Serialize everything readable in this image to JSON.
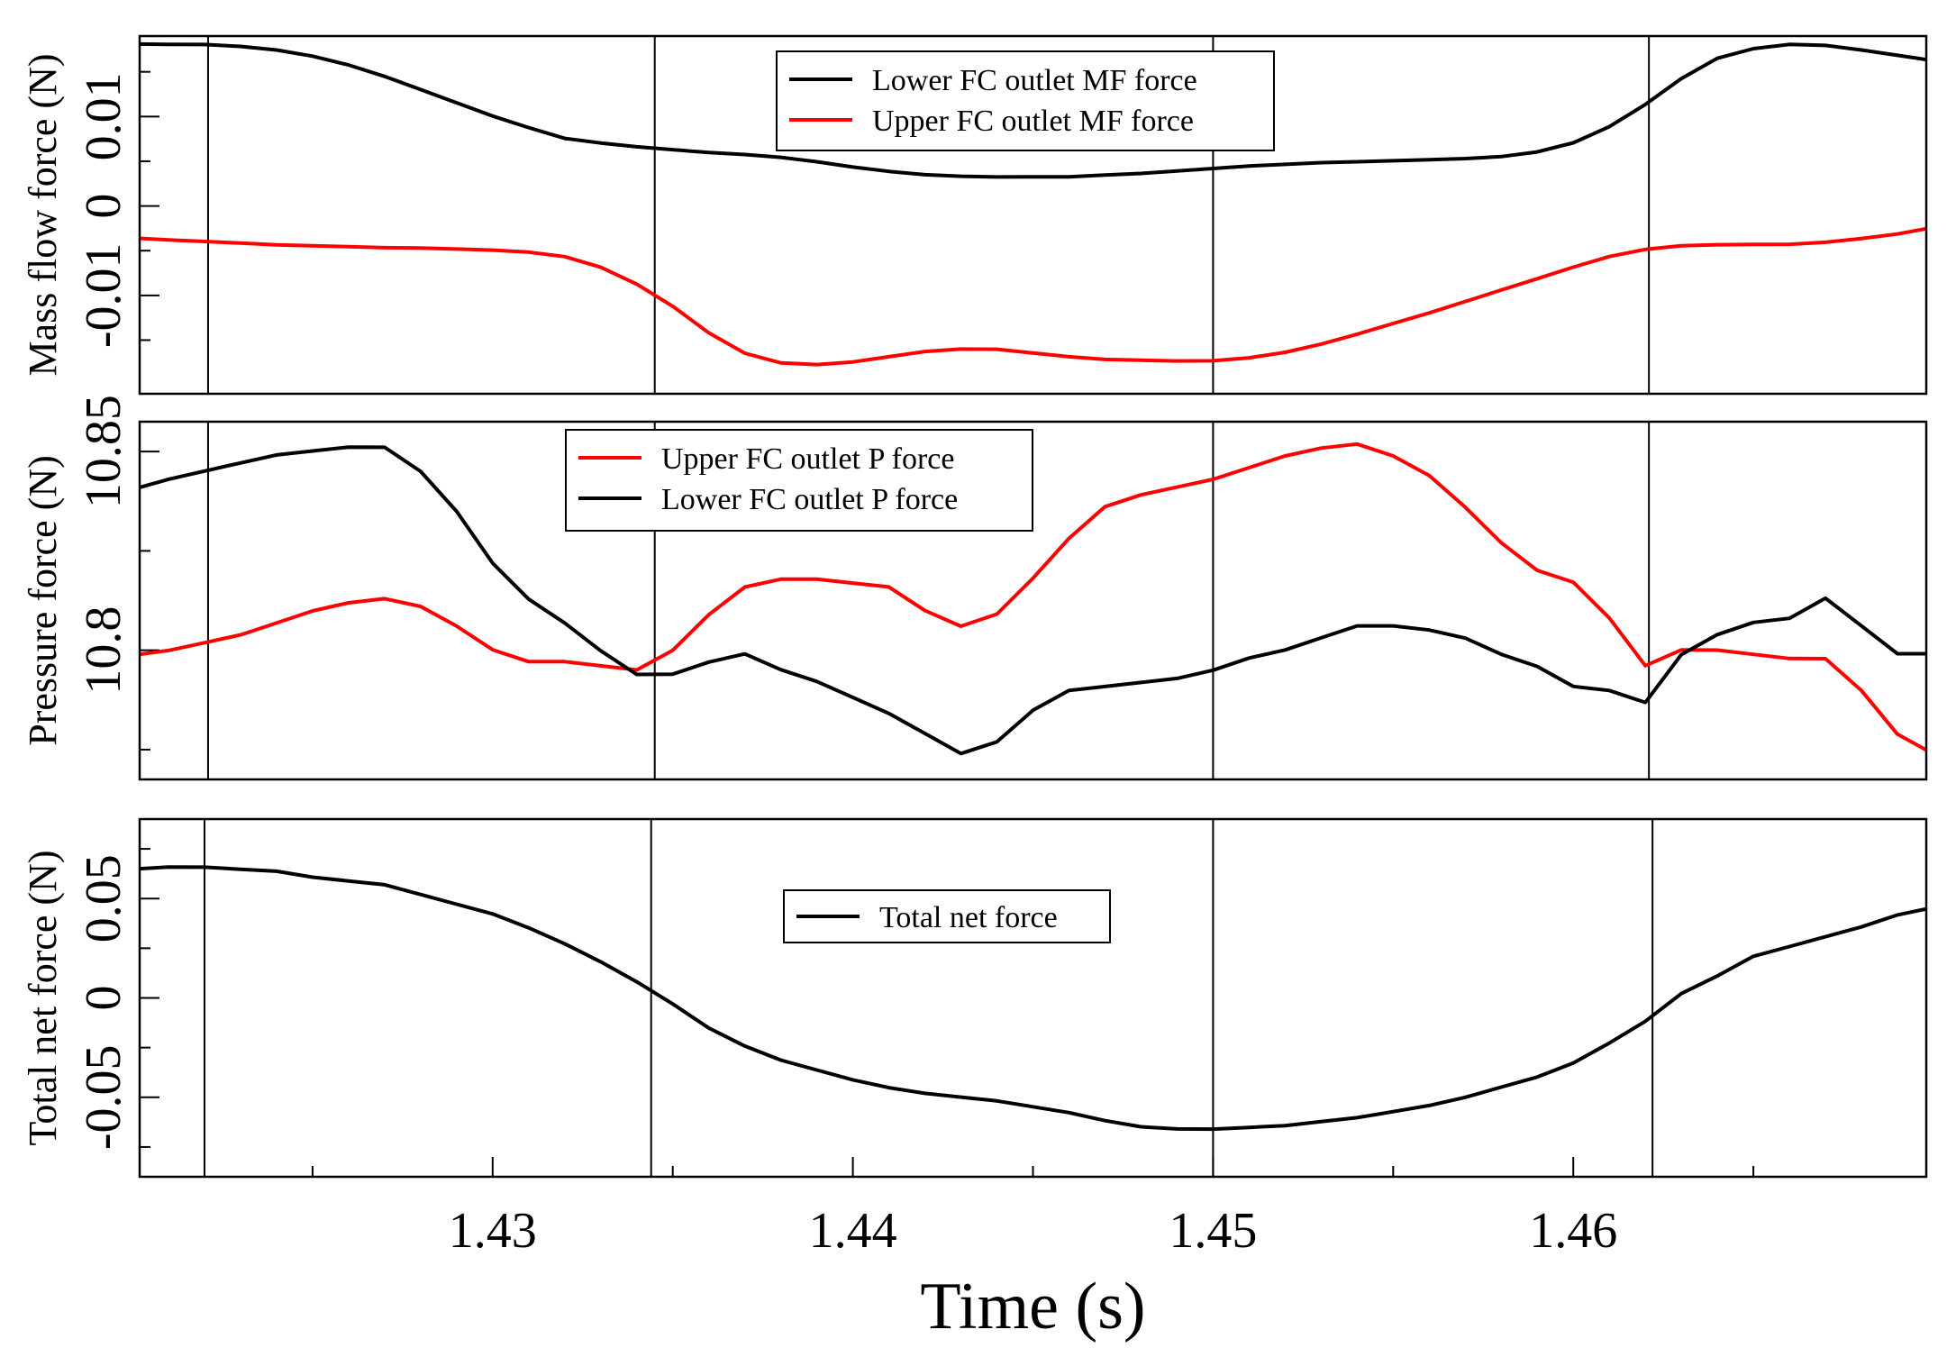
{
  "chart_data": [
    {
      "type": "line",
      "panel": "top",
      "ylabel": "Mass flow force (N)",
      "xlim": [
        1.4202,
        1.4698
      ],
      "ylim": [
        -0.021,
        0.019
      ],
      "yticks": [
        -0.01,
        0,
        0.01
      ],
      "ytick_labels": [
        "-0.01",
        "0",
        "0.01"
      ],
      "vlines": [
        1.4221,
        1.4345,
        1.45,
        1.4621
      ],
      "legend_position": "top-center",
      "series": [
        {
          "name": "Lower FC outlet MF force",
          "color": "#000000",
          "x": [
            1.4202,
            1.421,
            1.422,
            1.423,
            1.424,
            1.425,
            1.426,
            1.427,
            1.428,
            1.429,
            1.43,
            1.431,
            1.432,
            1.433,
            1.434,
            1.435,
            1.436,
            1.437,
            1.438,
            1.439,
            1.44,
            1.441,
            1.442,
            1.443,
            1.444,
            1.445,
            1.446,
            1.447,
            1.448,
            1.449,
            1.45,
            1.451,
            1.452,
            1.453,
            1.454,
            1.455,
            1.456,
            1.457,
            1.458,
            1.459,
            1.46,
            1.461,
            1.462,
            1.463,
            1.464,
            1.465,
            1.466,
            1.467,
            1.468,
            1.469,
            1.4698
          ],
          "y": [
            0.0181,
            0.0181,
            0.0181,
            0.0179,
            0.0175,
            0.0168,
            0.0158,
            0.0145,
            0.013,
            0.0115,
            0.01,
            0.0087,
            0.0075,
            0.007,
            0.0066,
            0.0063,
            0.006,
            0.0058,
            0.0055,
            0.005,
            0.0044,
            0.0039,
            0.0035,
            0.0033,
            0.0032,
            0.0032,
            0.0032,
            0.0034,
            0.0036,
            0.0039,
            0.0042,
            0.0045,
            0.0047,
            0.0049,
            0.005,
            0.0051,
            0.0052,
            0.0053,
            0.0055,
            0.006,
            0.007,
            0.0088,
            0.0113,
            0.0142,
            0.0165,
            0.0176,
            0.0181,
            0.018,
            0.0175,
            0.0169,
            0.0164
          ]
        },
        {
          "name": "Upper FC outlet MF force",
          "color": "#ff0000",
          "x": [
            1.4202,
            1.421,
            1.422,
            1.423,
            1.424,
            1.425,
            1.426,
            1.427,
            1.428,
            1.429,
            1.43,
            1.431,
            1.432,
            1.433,
            1.434,
            1.435,
            1.436,
            1.437,
            1.438,
            1.439,
            1.44,
            1.441,
            1.442,
            1.443,
            1.444,
            1.445,
            1.446,
            1.447,
            1.448,
            1.449,
            1.45,
            1.451,
            1.452,
            1.453,
            1.454,
            1.455,
            1.456,
            1.457,
            1.458,
            1.459,
            1.46,
            1.461,
            1.462,
            1.463,
            1.464,
            1.465,
            1.466,
            1.467,
            1.468,
            1.469,
            1.4698
          ],
          "y": [
            -0.0036,
            -0.0038,
            -0.004,
            -0.0042,
            -0.0044,
            -0.0045,
            -0.0046,
            -0.0047,
            -0.0047,
            -0.0048,
            -0.0049,
            -0.0051,
            -0.0056,
            -0.0068,
            -0.0087,
            -0.0112,
            -0.0142,
            -0.0165,
            -0.0176,
            -0.0178,
            -0.0175,
            -0.0169,
            -0.0163,
            -0.016,
            -0.016,
            -0.0164,
            -0.0168,
            -0.0171,
            -0.0172,
            -0.0173,
            -0.0173,
            -0.017,
            -0.0164,
            -0.0155,
            -0.0144,
            -0.0132,
            -0.012,
            -0.0107,
            -0.0094,
            -0.0081,
            -0.0068,
            -0.0056,
            -0.0048,
            -0.0044,
            -0.0043,
            -0.0043,
            -0.0043,
            -0.0041,
            -0.0037,
            -0.0032,
            -0.0026
          ]
        }
      ]
    },
    {
      "type": "line",
      "panel": "middle",
      "ylabel": "Pressure force (N)",
      "xlim": [
        1.4202,
        1.4698
      ],
      "ylim": [
        10.7675,
        10.8575
      ],
      "yticks": [
        10.8,
        10.85
      ],
      "ytick_labels": [
        "10.8",
        "10.85"
      ],
      "vlines": [
        1.4221,
        1.4345,
        1.45,
        1.4621
      ],
      "legend_position": "top-center",
      "series": [
        {
          "name": "Upper FC outlet P force",
          "color": "#ff0000",
          "x": [
            1.4202,
            1.421,
            1.422,
            1.423,
            1.424,
            1.425,
            1.426,
            1.427,
            1.428,
            1.429,
            1.43,
            1.431,
            1.432,
            1.433,
            1.434,
            1.435,
            1.436,
            1.437,
            1.438,
            1.439,
            1.44,
            1.441,
            1.442,
            1.443,
            1.444,
            1.445,
            1.446,
            1.447,
            1.448,
            1.449,
            1.45,
            1.451,
            1.452,
            1.453,
            1.454,
            1.455,
            1.456,
            1.457,
            1.458,
            1.459,
            1.46,
            1.461,
            1.462,
            1.463,
            1.464,
            1.465,
            1.466,
            1.467,
            1.468,
            1.469,
            1.4698
          ],
          "y": [
            10.799,
            10.8,
            10.802,
            10.804,
            10.807,
            10.81,
            10.812,
            10.813,
            10.811,
            10.806,
            10.8,
            10.797,
            10.797,
            10.796,
            10.795,
            10.8,
            10.809,
            10.816,
            10.818,
            10.818,
            10.817,
            10.816,
            10.81,
            10.806,
            10.809,
            10.818,
            10.828,
            10.836,
            10.839,
            10.841,
            10.843,
            10.846,
            10.849,
            10.851,
            10.852,
            10.849,
            10.844,
            10.836,
            10.827,
            10.82,
            10.817,
            10.808,
            10.796,
            10.8,
            10.8,
            10.799,
            10.798,
            10.798,
            10.79,
            10.779,
            10.775
          ]
        },
        {
          "name": "Lower FC outlet P force",
          "color": "#000000",
          "x": [
            1.4202,
            1.421,
            1.422,
            1.423,
            1.424,
            1.425,
            1.426,
            1.427,
            1.428,
            1.429,
            1.43,
            1.431,
            1.432,
            1.433,
            1.434,
            1.435,
            1.436,
            1.437,
            1.438,
            1.439,
            1.44,
            1.441,
            1.442,
            1.443,
            1.444,
            1.445,
            1.446,
            1.447,
            1.448,
            1.449,
            1.45,
            1.451,
            1.452,
            1.453,
            1.454,
            1.455,
            1.456,
            1.457,
            1.458,
            1.459,
            1.46,
            1.461,
            1.462,
            1.463,
            1.464,
            1.465,
            1.466,
            1.467,
            1.468,
            1.469,
            1.4698
          ],
          "y": [
            10.841,
            10.843,
            10.845,
            10.847,
            10.849,
            10.85,
            10.851,
            10.851,
            10.845,
            10.835,
            10.822,
            10.813,
            10.807,
            10.8,
            10.794,
            10.794,
            10.797,
            10.799,
            10.795,
            10.792,
            10.788,
            10.784,
            10.779,
            10.774,
            10.777,
            10.785,
            10.79,
            10.791,
            10.792,
            10.793,
            10.795,
            10.798,
            10.8,
            10.803,
            10.806,
            10.806,
            10.805,
            10.803,
            10.799,
            10.796,
            10.791,
            10.79,
            10.787,
            10.799,
            10.804,
            10.807,
            10.808,
            10.813,
            10.806,
            10.799,
            10.799
          ]
        }
      ]
    },
    {
      "type": "line",
      "panel": "bottom",
      "ylabel": "Total net force (N)",
      "xlabel": "Time (s)",
      "xlim": [
        1.4202,
        1.4698
      ],
      "ylim": [
        -0.09,
        0.09
      ],
      "yticks": [
        -0.05,
        0,
        0.05
      ],
      "ytick_labels": [
        "-0.05",
        "0",
        "0.05"
      ],
      "xticks": [
        1.43,
        1.44,
        1.45,
        1.46
      ],
      "xtick_labels": [
        "1.43",
        "1.44",
        "1.45",
        "1.46"
      ],
      "vlines": [
        1.422,
        1.4344,
        1.45,
        1.4622
      ],
      "legend_position": "center",
      "series": [
        {
          "name": "Total net force",
          "color": "#000000",
          "x": [
            1.4202,
            1.421,
            1.422,
            1.423,
            1.424,
            1.425,
            1.426,
            1.427,
            1.428,
            1.429,
            1.43,
            1.431,
            1.432,
            1.433,
            1.434,
            1.435,
            1.436,
            1.437,
            1.438,
            1.439,
            1.44,
            1.441,
            1.442,
            1.443,
            1.444,
            1.445,
            1.446,
            1.447,
            1.448,
            1.449,
            1.45,
            1.451,
            1.452,
            1.453,
            1.454,
            1.455,
            1.456,
            1.457,
            1.458,
            1.459,
            1.46,
            1.461,
            1.462,
            1.463,
            1.464,
            1.465,
            1.466,
            1.467,
            1.468,
            1.469,
            1.4698
          ],
          "y": [
            0.065,
            0.066,
            0.066,
            0.065,
            0.064,
            0.061,
            0.059,
            0.057,
            0.052,
            0.047,
            0.042,
            0.035,
            0.027,
            0.018,
            0.008,
            -0.003,
            -0.015,
            -0.024,
            -0.031,
            -0.036,
            -0.041,
            -0.045,
            -0.048,
            -0.05,
            -0.052,
            -0.055,
            -0.058,
            -0.062,
            -0.065,
            -0.066,
            -0.066,
            -0.065,
            -0.064,
            -0.062,
            -0.06,
            -0.057,
            -0.054,
            -0.05,
            -0.045,
            -0.04,
            -0.033,
            -0.023,
            -0.012,
            0.002,
            0.011,
            0.021,
            0.026,
            0.031,
            0.036,
            0.042,
            0.045
          ]
        }
      ]
    }
  ]
}
